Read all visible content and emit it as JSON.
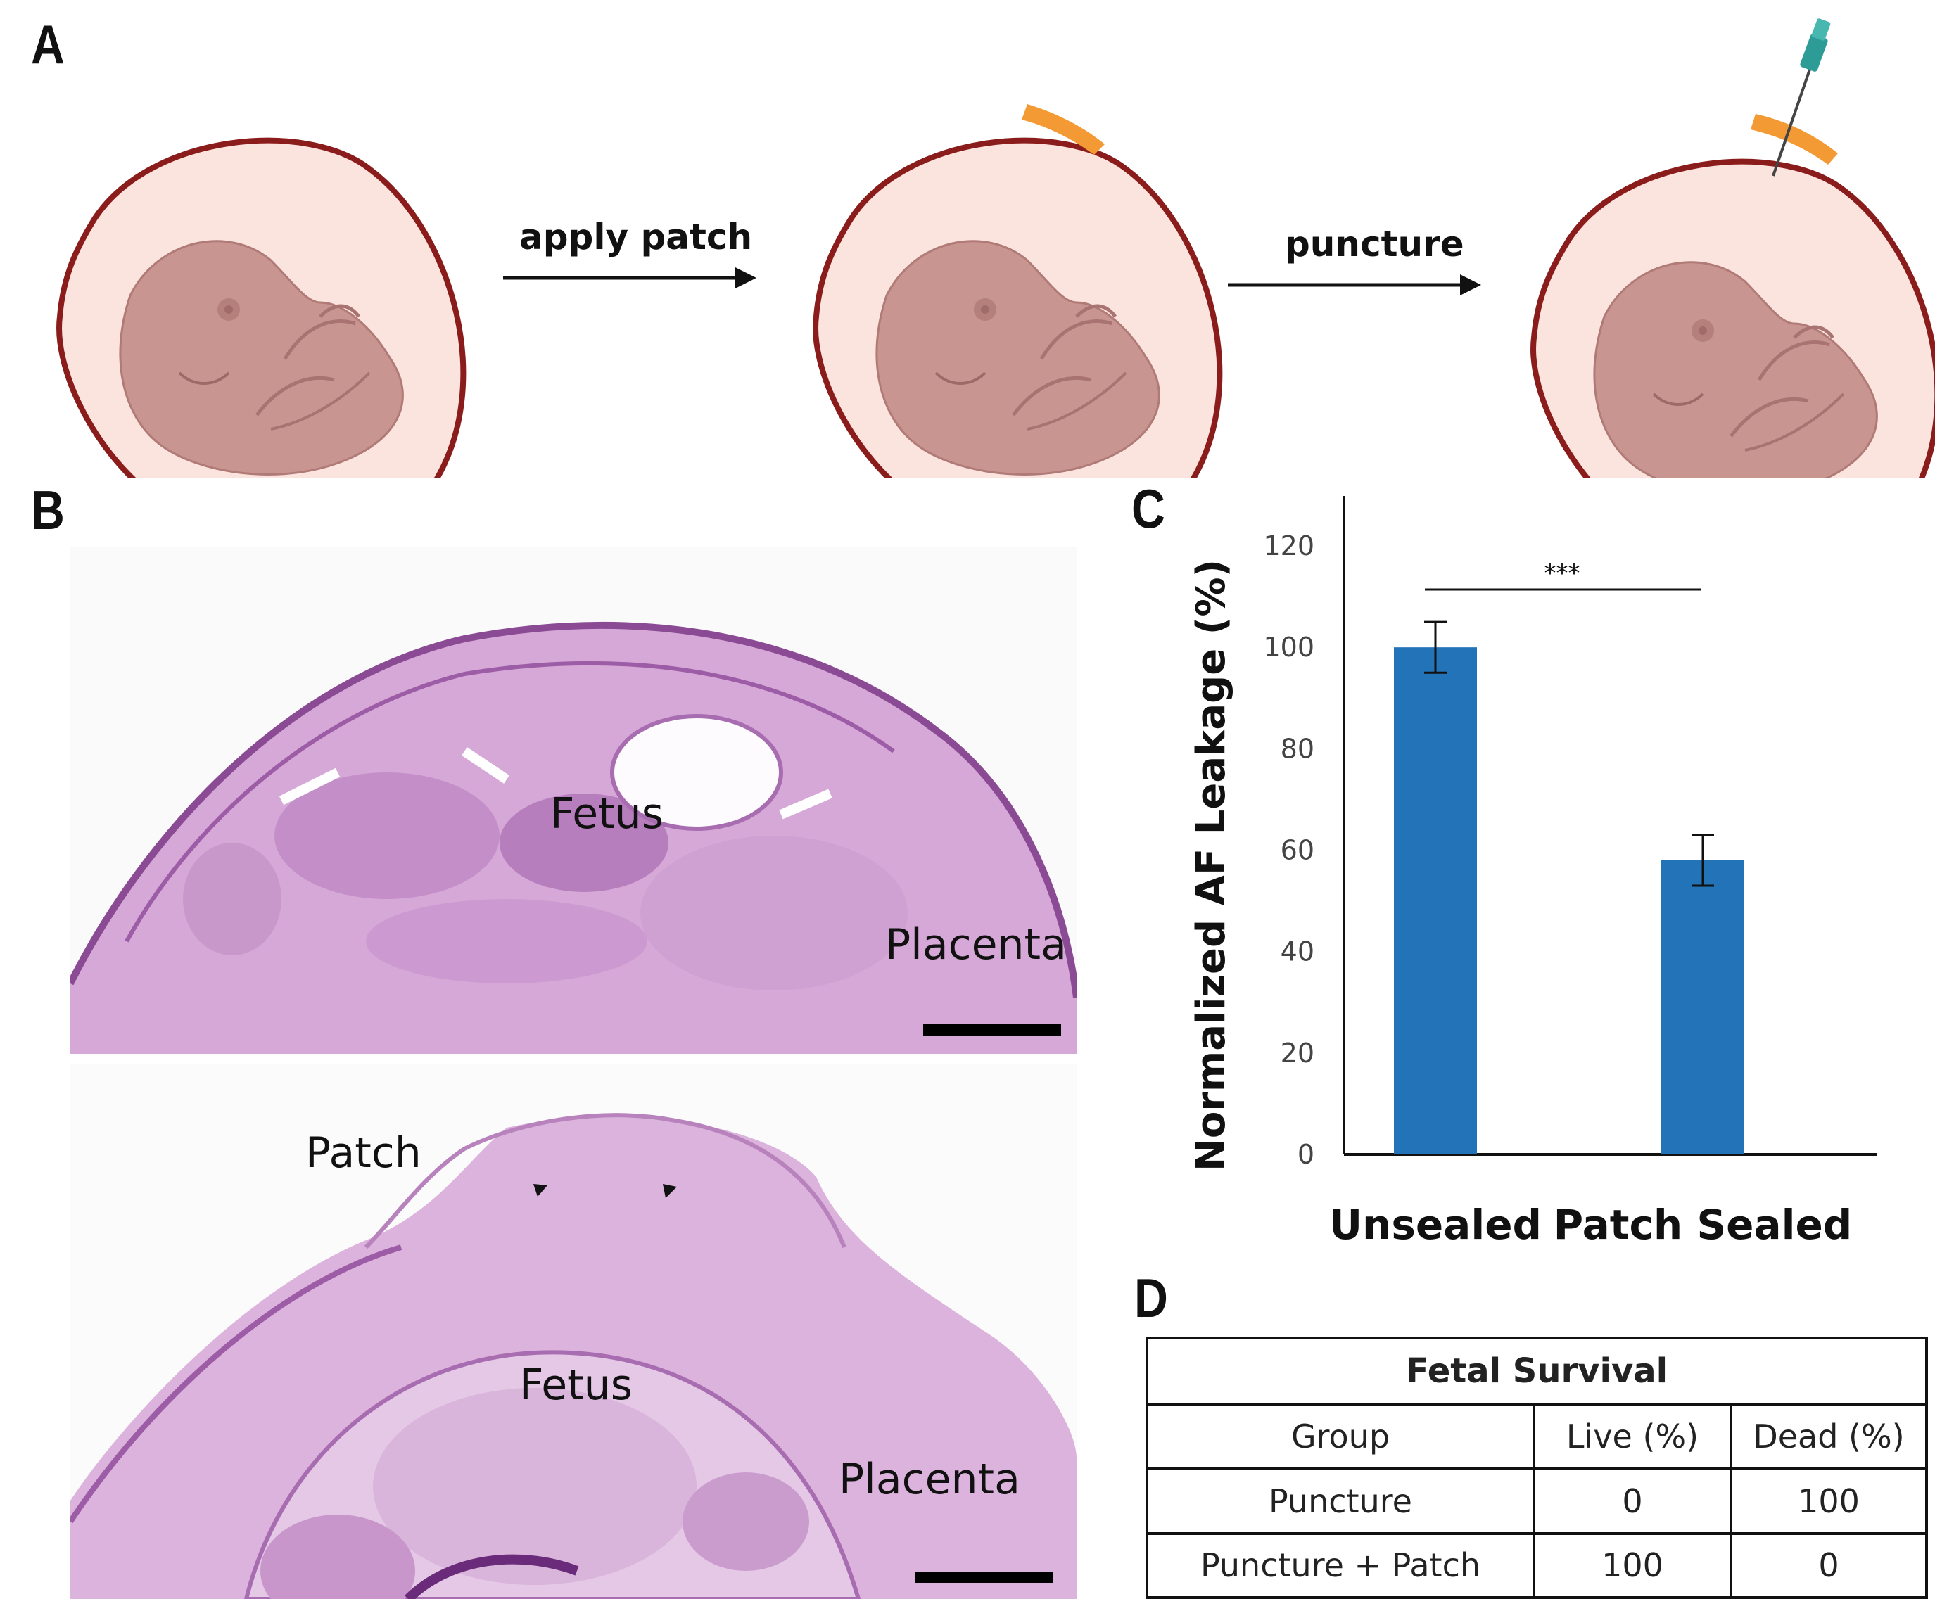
{
  "panels": {
    "a": "A",
    "b": "B",
    "c": "C",
    "d": "D"
  },
  "schematic": {
    "step1": "apply patch",
    "step2": "puncture",
    "colors": {
      "sac_outline": "#8b1c1c",
      "sac_fill": "#fbe3de",
      "fetus": "#c99591",
      "patch": "#f39a35",
      "needle": "#2e9c96"
    }
  },
  "histology": {
    "top": {
      "fetus": "Fetus",
      "placenta": "Placenta"
    },
    "bottom": {
      "patch": "Patch",
      "fetus": "Fetus",
      "placenta": "Placenta"
    },
    "stain_color": "#b06fb3"
  },
  "chart_data": {
    "type": "bar",
    "categories": [
      "Unsealed",
      "Patch Sealed"
    ],
    "values": [
      100,
      58
    ],
    "errors": [
      5,
      5
    ],
    "ylabel": "Normalized AF Leakage (%)",
    "ylim": [
      0,
      120
    ],
    "yticks": [
      "0",
      "20",
      "40",
      "60",
      "80",
      "100",
      "120"
    ],
    "significance": "***",
    "bar_color": "#2373b8",
    "grid": false
  },
  "table": {
    "title": "Fetal Survival",
    "headers": [
      "Group",
      "Live (%)",
      "Dead (%)"
    ],
    "rows": [
      [
        "Puncture",
        "0",
        "100"
      ],
      [
        "Puncture + Patch",
        "100",
        "0"
      ]
    ]
  }
}
